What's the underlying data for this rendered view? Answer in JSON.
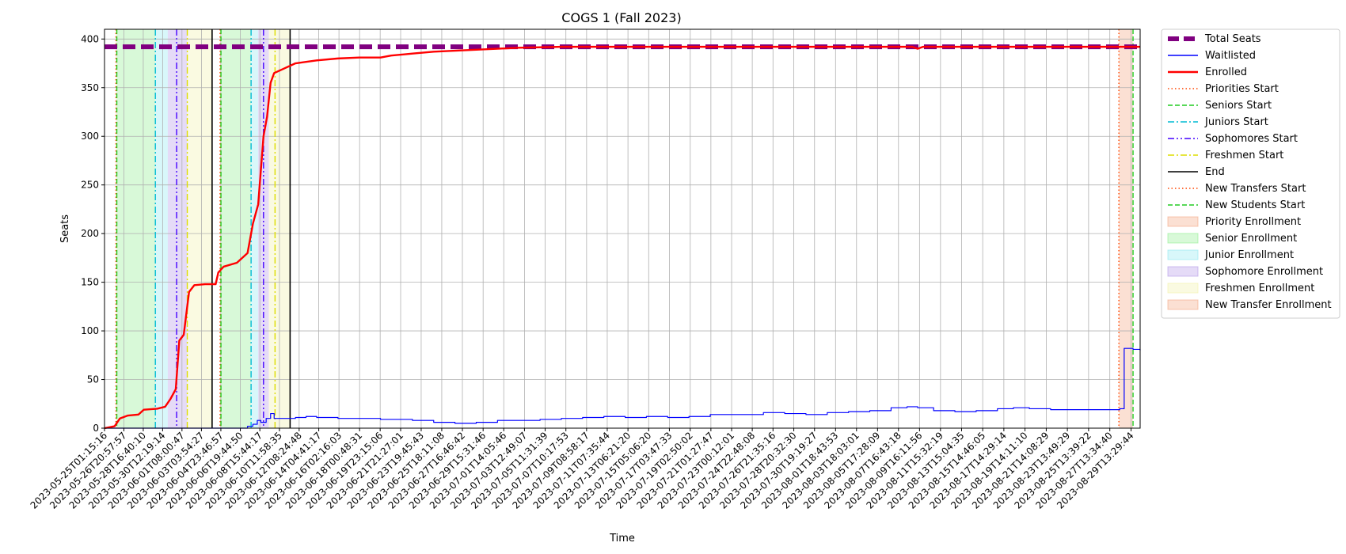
{
  "chart_data": {
    "type": "line",
    "title": "COGS 1 (Fall 2023)",
    "xlabel": "Time",
    "ylabel": "Seats",
    "x_range": [
      "2023-05-25T01:15:16",
      "2023-08-30T10:00:00"
    ],
    "ylim": [
      0,
      410
    ],
    "y_ticks": [
      0,
      50,
      100,
      150,
      200,
      250,
      300,
      350,
      400
    ],
    "x_ticks": [
      "2023-05-25T01:15:16",
      "2023-05-26T20:57:57",
      "2023-05-28T16:40:10",
      "2023-05-30T12:19:14",
      "2023-06-01T08:00:47",
      "2023-06-03T03:54:27",
      "2023-06-04T23:46:57",
      "2023-06-06T19:44:50",
      "2023-06-08T15:44:17",
      "2023-06-10T11:58:35",
      "2023-06-12T08:24:48",
      "2023-06-14T04:41:17",
      "2023-06-16T02:16:03",
      "2023-06-18T00:48:31",
      "2023-06-19T23:15:06",
      "2023-06-21T21:27:01",
      "2023-06-23T19:45:43",
      "2023-06-25T18:11:08",
      "2023-06-27T16:46:42",
      "2023-06-29T15:31:46",
      "2023-07-01T14:05:46",
      "2023-07-03T12:49:07",
      "2023-07-05T11:31:39",
      "2023-07-07T10:17:53",
      "2023-07-09T08:58:17",
      "2023-07-11T07:35:44",
      "2023-07-13T06:21:20",
      "2023-07-15T05:06:20",
      "2023-07-17T03:47:33",
      "2023-07-19T02:50:02",
      "2023-07-21T01:27:47",
      "2023-07-23T00:12:01",
      "2023-07-24T22:48:08",
      "2023-07-26T21:35:16",
      "2023-07-28T20:32:30",
      "2023-07-30T19:19:27",
      "2023-08-01T18:43:53",
      "2023-08-03T18:03:01",
      "2023-08-05T17:28:09",
      "2023-08-07T16:43:18",
      "2023-08-09T16:11:56",
      "2023-08-11T15:32:19",
      "2023-08-13T15:04:35",
      "2023-08-15T14:46:05",
      "2023-08-17T14:29:14",
      "2023-08-19T14:11:10",
      "2023-08-21T14:08:29",
      "2023-08-23T13:49:29",
      "2023-08-25T13:39:22",
      "2023-08-27T13:34:40",
      "2023-08-29T13:29:44"
    ],
    "grid": true,
    "legend_position": "outside-right",
    "series": [
      {
        "name": "Total Seats",
        "color": "#800080",
        "style": "thick-dashed",
        "points": [
          [
            "2023-05-25T01:15:16",
            392
          ],
          [
            "2023-08-30T10:00:00",
            392
          ]
        ]
      },
      {
        "name": "Waitlisted",
        "color": "#0000ff",
        "style": "thin-solid",
        "points": [
          [
            "2023-05-25T01:15:16",
            0
          ],
          [
            "2023-06-07T00:00:00",
            0
          ],
          [
            "2023-06-07T12:00:00",
            2
          ],
          [
            "2023-06-08T00:00:00",
            4
          ],
          [
            "2023-06-08T10:00:00",
            8
          ],
          [
            "2023-06-08T18:00:00",
            6
          ],
          [
            "2023-06-09T06:00:00",
            10
          ],
          [
            "2023-06-09T16:00:00",
            15
          ],
          [
            "2023-06-10T00:00:00",
            10
          ],
          [
            "2023-06-11T00:00:00",
            10
          ],
          [
            "2023-06-12T00:00:00",
            11
          ],
          [
            "2023-06-13T00:00:00",
            12
          ],
          [
            "2023-06-14T00:00:00",
            11
          ],
          [
            "2023-06-16T00:00:00",
            10
          ],
          [
            "2023-06-20T00:00:00",
            9
          ],
          [
            "2023-06-23T00:00:00",
            8
          ],
          [
            "2023-06-25T00:00:00",
            6
          ],
          [
            "2023-06-27T00:00:00",
            5
          ],
          [
            "2023-06-29T00:00:00",
            6
          ],
          [
            "2023-07-01T00:00:00",
            8
          ],
          [
            "2023-07-05T00:00:00",
            9
          ],
          [
            "2023-07-07T00:00:00",
            10
          ],
          [
            "2023-07-09T00:00:00",
            11
          ],
          [
            "2023-07-11T00:00:00",
            12
          ],
          [
            "2023-07-13T00:00:00",
            11
          ],
          [
            "2023-07-15T00:00:00",
            12
          ],
          [
            "2023-07-17T00:00:00",
            11
          ],
          [
            "2023-07-19T00:00:00",
            12
          ],
          [
            "2023-07-21T00:00:00",
            14
          ],
          [
            "2023-07-24T00:00:00",
            14
          ],
          [
            "2023-07-26T00:00:00",
            16
          ],
          [
            "2023-07-28T00:00:00",
            15
          ],
          [
            "2023-07-30T00:00:00",
            14
          ],
          [
            "2023-08-01T00:00:00",
            16
          ],
          [
            "2023-08-03T00:00:00",
            17
          ],
          [
            "2023-08-05T00:00:00",
            18
          ],
          [
            "2023-08-07T00:00:00",
            21
          ],
          [
            "2023-08-08T12:00:00",
            22
          ],
          [
            "2023-08-09T12:00:00",
            21
          ],
          [
            "2023-08-11T00:00:00",
            18
          ],
          [
            "2023-08-13T00:00:00",
            17
          ],
          [
            "2023-08-15T00:00:00",
            18
          ],
          [
            "2023-08-17T00:00:00",
            20
          ],
          [
            "2023-08-18T12:00:00",
            21
          ],
          [
            "2023-08-20T00:00:00",
            20
          ],
          [
            "2023-08-22T00:00:00",
            19
          ],
          [
            "2023-08-26T00:00:00",
            19
          ],
          [
            "2023-08-28T00:00:00",
            19
          ],
          [
            "2023-08-28T12:00:00",
            20
          ],
          [
            "2023-08-28T22:00:00",
            82
          ],
          [
            "2023-08-29T18:00:00",
            81
          ],
          [
            "2023-08-30T10:00:00",
            80
          ]
        ]
      },
      {
        "name": "Enrolled",
        "color": "#ff0000",
        "style": "thick-solid",
        "points": [
          [
            "2023-05-25T01:15:16",
            0
          ],
          [
            "2023-05-26T00:00:00",
            2
          ],
          [
            "2023-05-26T12:00:00",
            10
          ],
          [
            "2023-05-27T06:00:00",
            13
          ],
          [
            "2023-05-28T06:00:00",
            14
          ],
          [
            "2023-05-28T18:00:00",
            19
          ],
          [
            "2023-05-30T00:00:00",
            20
          ],
          [
            "2023-05-30T18:00:00",
            22
          ],
          [
            "2023-05-31T06:00:00",
            30
          ],
          [
            "2023-05-31T18:00:00",
            40
          ],
          [
            "2023-06-01T02:00:00",
            90
          ],
          [
            "2023-06-01T12:00:00",
            96
          ],
          [
            "2023-06-02T00:00:00",
            140
          ],
          [
            "2023-06-02T12:00:00",
            147
          ],
          [
            "2023-06-03T12:00:00",
            148
          ],
          [
            "2023-06-04T12:00:00",
            148
          ],
          [
            "2023-06-04T18:00:00",
            160
          ],
          [
            "2023-06-05T06:00:00",
            166
          ],
          [
            "2023-06-06T12:00:00",
            170
          ],
          [
            "2023-06-07T12:00:00",
            180
          ],
          [
            "2023-06-08T00:00:00",
            210
          ],
          [
            "2023-06-08T12:00:00",
            230
          ],
          [
            "2023-06-09T00:00:00",
            300
          ],
          [
            "2023-06-09T08:00:00",
            320
          ],
          [
            "2023-06-09T16:00:00",
            355
          ],
          [
            "2023-06-10T00:00:00",
            365
          ],
          [
            "2023-06-11T00:00:00",
            370
          ],
          [
            "2023-06-12T00:00:00",
            375
          ],
          [
            "2023-06-14T00:00:00",
            378
          ],
          [
            "2023-06-16T00:00:00",
            380
          ],
          [
            "2023-06-18T00:00:00",
            381
          ],
          [
            "2023-06-20T00:00:00",
            381
          ],
          [
            "2023-06-21T00:00:00",
            383
          ],
          [
            "2023-06-23T00:00:00",
            385
          ],
          [
            "2023-06-25T00:00:00",
            387
          ],
          [
            "2023-06-27T00:00:00",
            388
          ],
          [
            "2023-06-29T00:00:00",
            389
          ],
          [
            "2023-07-01T00:00:00",
            390
          ],
          [
            "2023-07-03T00:00:00",
            391
          ],
          [
            "2023-07-07T00:00:00",
            392
          ],
          [
            "2023-08-09T00:00:00",
            392
          ],
          [
            "2023-08-09T12:00:00",
            390
          ],
          [
            "2023-08-10T00:00:00",
            392
          ],
          [
            "2023-08-30T10:00:00",
            392
          ]
        ]
      }
    ],
    "event_lines": [
      {
        "name": "Priorities Start",
        "color": "#ff4500",
        "style": "dotted",
        "x": [
          "2023-05-26T03:00:00",
          "2023-06-04T22:00:00",
          "2023-08-28T10:00:00"
        ]
      },
      {
        "name": "Seniors Start",
        "color": "#22cc22",
        "style": "dashed",
        "x": [
          "2023-05-26T05:00:00",
          "2023-06-05T00:00:00",
          "2023-08-29T18:00:00"
        ]
      },
      {
        "name": "Juniors Start",
        "color": "#00bcd4",
        "style": "dashdot",
        "x": [
          "2023-05-29T20:00:00",
          "2023-06-07T20:00:00"
        ]
      },
      {
        "name": "Sophomores Start",
        "color": "#4400ff",
        "style": "dashdotdot",
        "x": [
          "2023-05-31T20:00:00",
          "2023-06-09T00:00:00"
        ]
      },
      {
        "name": "Freshmen Start",
        "color": "#dddd00",
        "style": "dashdot",
        "x": [
          "2023-06-01T20:00:00",
          "2023-06-10T02:00:00"
        ]
      },
      {
        "name": "End",
        "color": "#000000",
        "style": "solid",
        "x": [
          "2023-06-04T04:00:00",
          "2023-06-11T12:00:00"
        ]
      },
      {
        "name": "New Transfers Start",
        "color": "#ff4500",
        "style": "dotted",
        "x": []
      },
      {
        "name": "New Students Start",
        "color": "#22cc22",
        "style": "dashed",
        "x": []
      }
    ],
    "spans": [
      {
        "name": "Priority Enrollment",
        "color": "#f4a582",
        "ranges": [
          [
            "2023-05-26T03:00:00",
            "2023-05-26T05:00:00"
          ],
          [
            "2023-06-04T22:00:00",
            "2023-06-05T00:00:00"
          ]
        ]
      },
      {
        "name": "Senior Enrollment",
        "color": "#90ee90",
        "ranges": [
          [
            "2023-05-26T05:00:00",
            "2023-05-29T20:00:00"
          ],
          [
            "2023-06-05T00:00:00",
            "2023-06-07T20:00:00"
          ]
        ]
      },
      {
        "name": "Junior Enrollment",
        "color": "#8ee8f0",
        "ranges": [
          [
            "2023-05-29T20:00:00",
            "2023-05-31T00:00:00"
          ],
          [
            "2023-06-07T20:00:00",
            "2023-06-08T12:00:00"
          ]
        ]
      },
      {
        "name": "Sophomore Enrollment",
        "color": "#b497e8",
        "ranges": [
          [
            "2023-05-31T00:00:00",
            "2023-06-01T20:00:00"
          ],
          [
            "2023-06-08T12:00:00",
            "2023-06-09T12:00:00"
          ]
        ]
      },
      {
        "name": "Freshmen Enrollment",
        "color": "#f2f2a8",
        "ranges": [
          [
            "2023-06-01T20:00:00",
            "2023-06-04T04:00:00"
          ],
          [
            "2023-06-09T12:00:00",
            "2023-06-11T12:00:00"
          ]
        ]
      },
      {
        "name": "New Transfer Enrollment",
        "color": "#f4a582",
        "ranges": [
          [
            "2023-08-28T10:00:00",
            "2023-08-29T18:00:00"
          ]
        ]
      }
    ]
  }
}
